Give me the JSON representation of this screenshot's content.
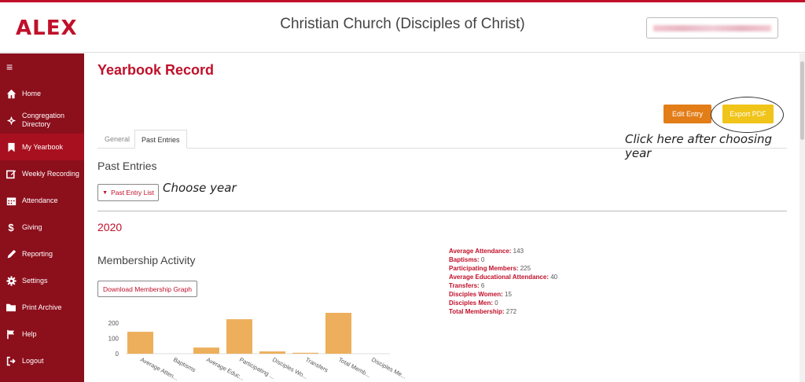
{
  "header": {
    "logo": "ALEX",
    "site_title": "Christian Church (Disciples of Christ)"
  },
  "sidebar": {
    "menu_icon": "≡",
    "items": [
      {
        "label": "Home",
        "icon": "home-icon"
      },
      {
        "label": "Congregation Directory",
        "icon": "compass-icon"
      },
      {
        "label": "My Yearbook",
        "icon": "bookmark-icon"
      },
      {
        "label": "Weekly Recording",
        "icon": "edit-icon"
      },
      {
        "label": "Attendance",
        "icon": "calendar-icon"
      },
      {
        "label": "Giving",
        "icon": "dollar-icon"
      },
      {
        "label": "Reporting",
        "icon": "pencil-icon"
      },
      {
        "label": "Settings",
        "icon": "gear-icon"
      },
      {
        "label": "Print Archive",
        "icon": "folder-icon"
      },
      {
        "label": "Help",
        "icon": "flag-icon"
      },
      {
        "label": "Logout",
        "icon": "logout-icon"
      }
    ],
    "active_item": "My Yearbook"
  },
  "main": {
    "page_title": "Yearbook Record",
    "edit_button": "Edit Entry",
    "export_button": "Export PDF",
    "annotation_export": "Click here after choosing year",
    "annotation_year": "Choose year",
    "tabs": [
      "General",
      "Past Entries"
    ],
    "active_tab": "Past Entries",
    "section_title": "Past Entries",
    "past_entry_button": "Past Entry List",
    "year": "2020",
    "membership_title": "Membership Activity",
    "download_button": "Download Membership Graph",
    "stats": [
      {
        "label": "Average Attendance:",
        "value": "143"
      },
      {
        "label": "Baptisms:",
        "value": "0"
      },
      {
        "label": "Participating Members:",
        "value": "225"
      },
      {
        "label": "Average Educational Attendance:",
        "value": "40"
      },
      {
        "label": "Transfers:",
        "value": "6"
      },
      {
        "label": "Disciples Women:",
        "value": "15"
      },
      {
        "label": "Disciples Men:",
        "value": "0"
      },
      {
        "label": "Total Membership:",
        "value": "272"
      }
    ]
  },
  "colors": {
    "brand_red": "#c0102a",
    "sidebar_bg": "#8c0f1c",
    "edit_orange": "#e27d18",
    "export_yellow": "#f0c418",
    "bar_color": "#edaf5c"
  },
  "chart_data": {
    "type": "bar",
    "categories": [
      "Average Atten...",
      "Baptisms",
      "Average Educ...",
      "Participating ...",
      "Disciples Wo...",
      "Transfers",
      "Total Memb...",
      "Disciples Me..."
    ],
    "values": [
      143,
      0,
      40,
      225,
      15,
      6,
      272,
      0
    ],
    "yticks": [
      0,
      100,
      200
    ],
    "ylim": [
      0,
      300
    ]
  }
}
